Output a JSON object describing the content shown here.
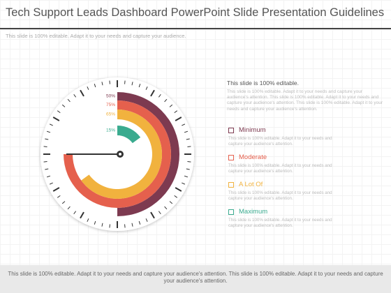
{
  "header": {
    "title": "Tech Support Leads Dashboard PowerPoint Slide Presentation Guidelines",
    "subtitle": "This slide is 100% editable.  Adapt it to your needs and capture your audience."
  },
  "chart_data": {
    "type": "radial_bar",
    "categories": [
      "Minimum",
      "Moderate",
      "A Lot Of",
      "Maximum"
    ],
    "values": [
      50,
      75,
      65,
      15
    ],
    "value_labels": [
      "50%",
      "75%",
      "65%",
      "15%"
    ],
    "colors": [
      "#7d3a50",
      "#e5604d",
      "#f1b23e",
      "#3aab8f"
    ],
    "ylim": [
      0,
      100
    ]
  },
  "side_panel": {
    "heading": "This slide is 100% editable.",
    "text": "This slide is 100% editable. Adapt it to your needs and capture your audience's attention. This slide is 100% editable. Adapt it to your needs and capture your audience's attention. This slide is 100% editable. Adapt it to your needs and capture your audience's attention.",
    "item_descriptions": [
      "This slide is 100% editable. Adapt it to your needs and capture your audience's attention.",
      "This slide is 100% editable. Adapt it to your needs and capture your audience's attention.",
      "This slide is 100% editable. Adapt it to your needs and capture your audience's attention.",
      "This slide is 100% editable. Adapt it to your needs and capture your audience's attention."
    ]
  },
  "footer": "This slide is 100% editable.  Adapt it to your needs and capture your audience's attention. This slide is 100% editable. Adapt it to your needs and capture your audience's attention."
}
